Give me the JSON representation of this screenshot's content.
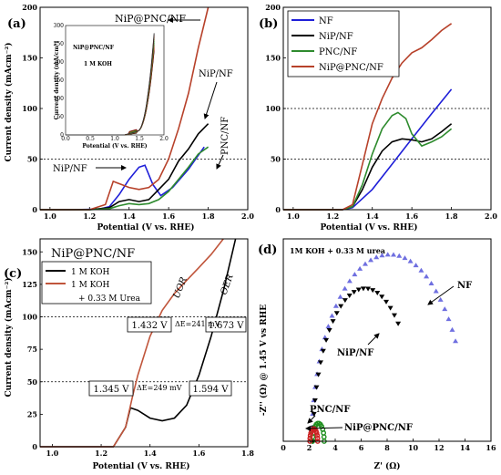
{
  "colors": {
    "NF": "#1f1fd8",
    "NiP/NF": "#000000",
    "PNC/NF": "#2e8b2e",
    "NiP@PNC/NF": "#b7412a",
    "1 M KOH": "#000000",
    "1 M KOH + 0.33 M Urea": "#c0553b",
    "EIS_NF": "#6f6fe0",
    "EIS_NiP/NF": "#000000",
    "EIS_PNC/NF": "#1f8f1f",
    "EIS_NiP@PNC/NF": "#cc2222"
  },
  "chart_data": [
    {
      "panel": "(a)",
      "type": "line",
      "xlabel": "Potential (V vs. RHE)",
      "ylabel": "Current density (mAcm⁻²)",
      "xlim": [
        0.95,
        2.0
      ],
      "ylim": [
        0,
        200
      ],
      "xticks": [
        "1.0",
        "1.2",
        "1.4",
        "1.6",
        "1.8",
        "2.0"
      ],
      "yticks": [
        "0",
        "50",
        "100",
        "150",
        "200"
      ],
      "dashed_y": [
        50
      ],
      "annotations": [
        "NiP@PNC/NF",
        "NiP/NF",
        "PNC/NF",
        "NiP/NF"
      ],
      "series": [
        {
          "name": "NiP/NF",
          "color_key": "NF",
          "x": [
            0.95,
            1.1,
            1.25,
            1.3,
            1.35,
            1.4,
            1.45,
            1.48,
            1.52,
            1.56,
            1.62,
            1.7,
            1.78
          ],
          "y": [
            0,
            0,
            0.5,
            3,
            15,
            30,
            42,
            44,
            25,
            14,
            22,
            40,
            62
          ]
        },
        {
          "name": "NiP/NF",
          "color_key": "NiP/NF",
          "x": [
            0.95,
            1.2,
            1.3,
            1.35,
            1.4,
            1.45,
            1.5,
            1.55,
            1.6,
            1.65,
            1.7,
            1.75,
            1.8
          ],
          "y": [
            0,
            0,
            2,
            8,
            10,
            8,
            10,
            20,
            30,
            48,
            60,
            75,
            85
          ]
        },
        {
          "name": "PNC/NF",
          "color_key": "PNC/NF",
          "x": [
            0.95,
            1.2,
            1.3,
            1.35,
            1.4,
            1.45,
            1.5,
            1.55,
            1.6,
            1.65,
            1.7,
            1.75,
            1.8
          ],
          "y": [
            0,
            0,
            1,
            4,
            6,
            5,
            6,
            10,
            18,
            30,
            42,
            55,
            62
          ]
        },
        {
          "name": "NiP@PNC/NF",
          "color_key": "NiP@PNC/NF",
          "x": [
            0.95,
            1.2,
            1.28,
            1.32,
            1.36,
            1.4,
            1.45,
            1.5,
            1.55,
            1.6,
            1.65,
            1.7,
            1.75,
            1.8
          ],
          "y": [
            0,
            0,
            5,
            28,
            25,
            22,
            20,
            22,
            30,
            50,
            80,
            115,
            160,
            200
          ]
        }
      ],
      "inset": {
        "title": "NiP@PNC/NF",
        "subtitle": "1 M KOH",
        "xlabel": "Potential (V vs. RHE)",
        "ylabel": "Current density (mA/cm²)",
        "xlim": [
          0.0,
          2.0
        ],
        "ylim": [
          0,
          300
        ],
        "xticks": [
          "0.0",
          "0.5",
          "1.0",
          "1.5",
          "2.0"
        ],
        "yticks": [
          "0",
          "50",
          "100",
          "150",
          "200",
          "250",
          "300"
        ]
      }
    },
    {
      "panel": "(b)",
      "type": "line",
      "xlabel": "Potential (V vs. RHE)",
      "xlim": [
        0.95,
        2.0
      ],
      "ylim": [
        0,
        200
      ],
      "xticks": [
        "1.0",
        "1.2",
        "1.4",
        "1.6",
        "1.8",
        "2.0"
      ],
      "yticks": [
        "0",
        "50",
        "100",
        "150",
        "200"
      ],
      "dashed_y": [
        50,
        100
      ],
      "legend": [
        "NF",
        "NiP/NF",
        "PNC/NF",
        "NiP@PNC/NF"
      ],
      "legend_position": "top-left",
      "series": [
        {
          "name": "NF",
          "x": [
            0.95,
            1.25,
            1.3,
            1.4,
            1.5,
            1.6,
            1.7,
            1.8
          ],
          "y": [
            0,
            0,
            2,
            20,
            45,
            70,
            95,
            119
          ]
        },
        {
          "name": "NiP/NF",
          "x": [
            0.95,
            1.25,
            1.3,
            1.35,
            1.4,
            1.45,
            1.5,
            1.55,
            1.6,
            1.65,
            1.7,
            1.75,
            1.8
          ],
          "y": [
            0,
            0,
            3,
            20,
            42,
            58,
            67,
            70,
            69,
            67,
            70,
            77,
            85
          ]
        },
        {
          "name": "PNC/NF",
          "x": [
            0.95,
            1.25,
            1.3,
            1.35,
            1.4,
            1.45,
            1.5,
            1.53,
            1.57,
            1.6,
            1.65,
            1.7,
            1.75,
            1.8
          ],
          "y": [
            0,
            0,
            3,
            25,
            55,
            80,
            93,
            96,
            90,
            75,
            63,
            67,
            72,
            80
          ]
        },
        {
          "name": "NiP@PNC/NF",
          "x": [
            0.95,
            1.25,
            1.3,
            1.35,
            1.4,
            1.45,
            1.5,
            1.55,
            1.6,
            1.65,
            1.7,
            1.75,
            1.8
          ],
          "y": [
            0,
            0,
            5,
            45,
            85,
            110,
            130,
            145,
            155,
            160,
            168,
            177,
            184
          ]
        }
      ]
    },
    {
      "panel": "(c)",
      "type": "line",
      "title": "NiP@PNC/NF",
      "xlabel": "Potential (V vs. RHE)",
      "ylabel": "Current density (mAcm⁻²)",
      "xlim": [
        0.95,
        1.8
      ],
      "ylim": [
        0,
        160
      ],
      "xticks": [
        "1.0",
        "1.2",
        "1.4",
        "1.6",
        "1.8"
      ],
      "yticks": [
        "0",
        "25",
        "50",
        "75",
        "100",
        "125",
        "150"
      ],
      "dashed_y": [
        50,
        100
      ],
      "legend": [
        "1 M KOH",
        "1 M KOH",
        "+ 0.33 M Urea"
      ],
      "legend_position": "top-left",
      "curve_labels": [
        "UOR",
        "OER"
      ],
      "annotations": [
        "1.432 V",
        "1.673 V",
        "1.345 V",
        "1.594 V",
        "ΔE=241 mV",
        "ΔE=249 mV"
      ],
      "series": [
        {
          "name": "1 M KOH",
          "x": [
            0.95,
            1.25,
            1.3,
            1.32,
            1.35,
            1.4,
            1.45,
            1.5,
            1.55,
            1.6,
            1.65,
            1.7,
            1.75
          ],
          "y": [
            0,
            0,
            15,
            30,
            28,
            22,
            20,
            22,
            32,
            55,
            85,
            120,
            160
          ]
        },
        {
          "name": "1 M KOH + 0.33 M Urea",
          "x": [
            0.95,
            1.25,
            1.3,
            1.33,
            1.35,
            1.4,
            1.45,
            1.5,
            1.55,
            1.6,
            1.65,
            1.7
          ],
          "y": [
            0,
            0,
            15,
            40,
            55,
            85,
            105,
            118,
            128,
            138,
            148,
            160
          ]
        }
      ]
    },
    {
      "panel": "(d)",
      "type": "scatter",
      "subtitle": "1M KOH + 0.33 M urea",
      "xlabel": "Z' (Ω)",
      "ylabel": "-Z'' (Ω) @ 1.45 V vs RHE",
      "xlim": [
        0,
        16
      ],
      "ylim": [
        0,
        9
      ],
      "xticks": [
        "0",
        "2",
        "4",
        "6",
        "8",
        "10",
        "12",
        "14",
        "16"
      ],
      "annotations": [
        "NF",
        "NiP/NF",
        "PNC/NF",
        "NiP@PNC/NF"
      ],
      "series": [
        {
          "name": "NF",
          "center": 8.2,
          "radius": 6.0,
          "height": 8.3
        },
        {
          "name": "NiP/NF",
          "center": 6.3,
          "radius": 4.0,
          "height": 6.8
        },
        {
          "name": "PNC/NF",
          "center": 2.7,
          "radius": 0.45,
          "height": 0.8
        },
        {
          "name": "NiP@PNC/NF",
          "center": 2.35,
          "radius": 0.3,
          "height": 0.55
        }
      ]
    }
  ]
}
